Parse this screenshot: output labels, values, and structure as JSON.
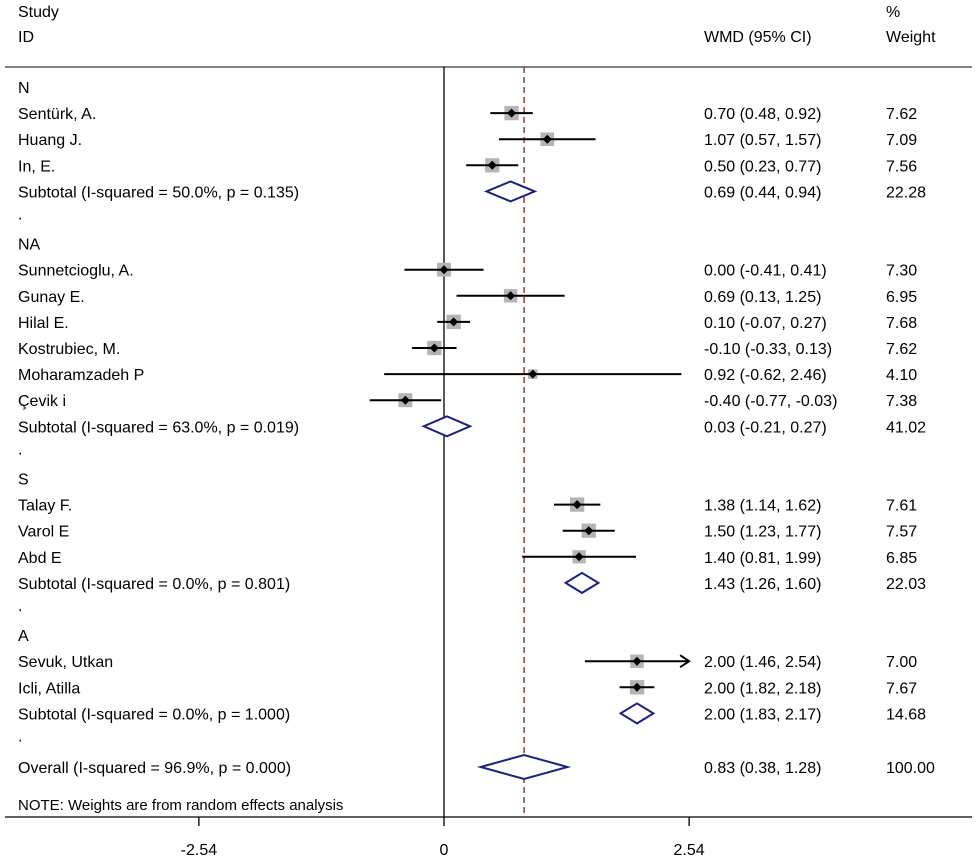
{
  "header": {
    "study_line1": "Study",
    "study_line2": "ID",
    "wmd_header": "WMD (95% CI)",
    "weight_line1": "%",
    "weight_line2": "Weight"
  },
  "footnote": "NOTE: Weights are from random effects analysis",
  "colors": {
    "diamond_outline": "#1a237e",
    "reference_line": "#8b1a1a",
    "weight_box": "#b4b4b4"
  },
  "chart_data": {
    "type": "forest",
    "measure": "WMD",
    "null_value": 0,
    "overall_reference_line": 0.83,
    "xlim": [
      -4.6,
      5.4
    ],
    "x_ticks": [
      -2.54,
      0,
      2.54
    ],
    "x_tick_labels": [
      "-2.54",
      "0",
      "2.54"
    ],
    "groups": [
      {
        "name": "N",
        "studies": [
          {
            "id": "Sentürk, A.",
            "est": 0.7,
            "lo": 0.48,
            "hi": 0.92,
            "ci_text": "0.70 (0.48, 0.92)",
            "weight": 7.62,
            "weight_text": "7.62"
          },
          {
            "id": "Huang J.",
            "est": 1.07,
            "lo": 0.57,
            "hi": 1.57,
            "ci_text": "1.07 (0.57, 1.57)",
            "weight": 7.09,
            "weight_text": "7.09"
          },
          {
            "id": "In, E.",
            "est": 0.5,
            "lo": 0.23,
            "hi": 0.77,
            "ci_text": "0.50 (0.23, 0.77)",
            "weight": 7.56,
            "weight_text": "7.56"
          }
        ],
        "subtotal": {
          "label": "Subtotal  (I-squared = 50.0%, p = 0.135)",
          "est": 0.69,
          "lo": 0.44,
          "hi": 0.94,
          "ci_text": "0.69 (0.44, 0.94)",
          "weight_text": "22.28"
        }
      },
      {
        "name": "NA",
        "studies": [
          {
            "id": "Sunnetcioglu, A.",
            "est": 0.0,
            "lo": -0.41,
            "hi": 0.41,
            "ci_text": "0.00 (-0.41, 0.41)",
            "weight": 7.3,
            "weight_text": "7.30"
          },
          {
            "id": "Gunay E.",
            "est": 0.69,
            "lo": 0.13,
            "hi": 1.25,
            "ci_text": "0.69 (0.13, 1.25)",
            "weight": 6.95,
            "weight_text": "6.95"
          },
          {
            "id": "Hilal E.",
            "est": 0.1,
            "lo": -0.07,
            "hi": 0.27,
            "ci_text": "0.10 (-0.07, 0.27)",
            "weight": 7.68,
            "weight_text": "7.68"
          },
          {
            "id": "Kostrubiec, M.",
            "est": -0.1,
            "lo": -0.33,
            "hi": 0.13,
            "ci_text": "-0.10 (-0.33, 0.13)",
            "weight": 7.62,
            "weight_text": "7.62"
          },
          {
            "id": "Moharamzadeh P",
            "est": 0.92,
            "lo": -0.62,
            "hi": 2.46,
            "ci_text": "0.92 (-0.62, 2.46)",
            "weight": 4.1,
            "weight_text": "4.10"
          },
          {
            "id": "Çevik i",
            "est": -0.4,
            "lo": -0.77,
            "hi": -0.03,
            "ci_text": "-0.40 (-0.77, -0.03)",
            "weight": 7.38,
            "weight_text": "7.38"
          }
        ],
        "subtotal": {
          "label": "Subtotal  (I-squared = 63.0%, p = 0.019)",
          "est": 0.03,
          "lo": -0.21,
          "hi": 0.27,
          "ci_text": "0.03 (-0.21, 0.27)",
          "weight_text": "41.02"
        }
      },
      {
        "name": "S",
        "studies": [
          {
            "id": "Talay F.",
            "est": 1.38,
            "lo": 1.14,
            "hi": 1.62,
            "ci_text": "1.38 (1.14, 1.62)",
            "weight": 7.61,
            "weight_text": "7.61"
          },
          {
            "id": "Varol E",
            "est": 1.5,
            "lo": 1.23,
            "hi": 1.77,
            "ci_text": "1.50 (1.23, 1.77)",
            "weight": 7.57,
            "weight_text": "7.57"
          },
          {
            "id": "Abd E",
            "est": 1.4,
            "lo": 0.81,
            "hi": 1.99,
            "ci_text": "1.40 (0.81, 1.99)",
            "weight": 6.85,
            "weight_text": "6.85"
          }
        ],
        "subtotal": {
          "label": "Subtotal  (I-squared = 0.0%, p = 0.801)",
          "est": 1.43,
          "lo": 1.26,
          "hi": 1.6,
          "ci_text": "1.43 (1.26, 1.60)",
          "weight_text": "22.03"
        }
      },
      {
        "name": "A",
        "studies": [
          {
            "id": "Sevuk, Utkan",
            "est": 2.0,
            "lo": 1.46,
            "hi": 2.54,
            "ci_text": "2.00 (1.46, 2.54)",
            "weight": 7.0,
            "weight_text": "7.00",
            "arrow_right": true
          },
          {
            "id": "Icli, Atilla",
            "est": 2.0,
            "lo": 1.82,
            "hi": 2.18,
            "ci_text": "2.00 (1.82, 2.18)",
            "weight": 7.67,
            "weight_text": "7.67"
          }
        ],
        "subtotal": {
          "label": "Subtotal  (I-squared = 0.0%, p = 1.000)",
          "est": 2.0,
          "lo": 1.83,
          "hi": 2.17,
          "ci_text": "2.00 (1.83, 2.17)",
          "weight_text": "14.68"
        }
      }
    ],
    "overall": {
      "label": "Overall  (I-squared = 96.9%, p = 0.000)",
      "est": 0.83,
      "lo": 0.38,
      "hi": 1.28,
      "ci_text": "0.83 (0.38, 1.28)",
      "weight_text": "100.00"
    }
  }
}
